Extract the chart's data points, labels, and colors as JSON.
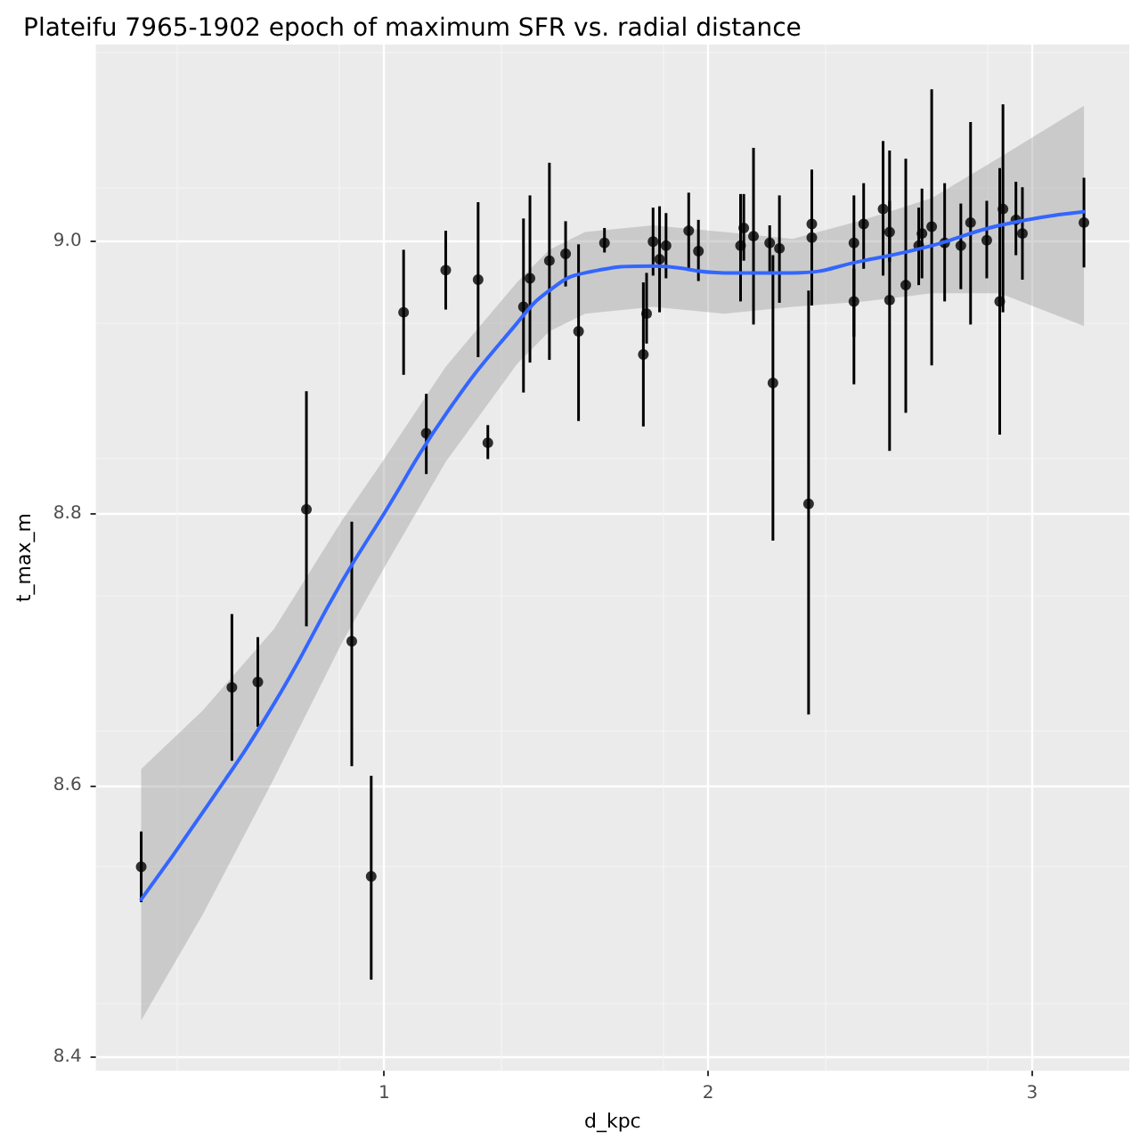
{
  "chart_data": {
    "type": "scatter",
    "title": "Plateifu 7965-1902 epoch of maximum SFR vs. radial distance",
    "xlabel": "d_kpc",
    "ylabel": "t_max_m",
    "xlim": [
      0.11,
      3.3
    ],
    "xticks": [
      1,
      2,
      3
    ],
    "ylim": [
      8.39,
      9.145
    ],
    "yticks": [
      8.4,
      8.6,
      8.8,
      {
        "value": 9.0,
        "label": "9.0"
      }
    ],
    "grid": true,
    "marker": "circle",
    "series": [
      {
        "type": "scatter",
        "color": "#000000",
        "x": [
          0.25,
          0.53,
          0.61,
          0.76,
          0.9,
          0.96,
          1.06,
          1.13,
          1.19,
          1.29,
          1.32,
          1.43,
          1.45,
          1.51,
          1.56,
          1.6,
          1.68,
          1.8,
          1.81,
          1.83,
          1.85,
          1.87,
          1.94,
          1.97,
          2.1,
          2.11,
          2.14,
          2.19,
          2.2,
          2.22,
          2.31,
          2.32,
          2.32,
          2.45,
          2.45,
          2.48,
          2.54,
          2.56,
          2.56,
          2.61,
          2.65,
          2.66,
          2.69,
          2.73,
          2.78,
          2.81,
          2.86,
          2.9,
          2.91,
          2.95,
          2.97,
          3.16
        ],
        "values": [
          8.54,
          8.672,
          8.676,
          8.803,
          8.706,
          8.533,
          8.948,
          8.859,
          8.979,
          8.972,
          8.852,
          8.952,
          8.973,
          8.986,
          8.991,
          8.934,
          8.999,
          8.917,
          8.947,
          9.0,
          8.987,
          8.997,
          9.008,
          8.993,
          8.997,
          9.01,
          9.004,
          8.999,
          8.896,
          8.995,
          8.807,
          9.013,
          9.003,
          8.999,
          8.956,
          9.013,
          9.024,
          9.007,
          8.957,
          8.968,
          8.997,
          9.006,
          9.011,
          8.999,
          8.997,
          9.014,
          9.001,
          8.956,
          9.024,
          9.016,
          9.006,
          9.014
        ],
        "errors": [
          [
            8.514,
            8.566
          ],
          [
            8.618,
            8.726
          ],
          [
            8.643,
            8.709
          ],
          [
            8.717,
            8.89
          ],
          [
            8.614,
            8.794
          ],
          [
            8.457,
            8.607
          ],
          [
            8.902,
            8.994
          ],
          [
            8.829,
            8.888
          ],
          [
            8.95,
            9.008
          ],
          [
            8.915,
            9.029
          ],
          [
            8.84,
            8.865
          ],
          [
            8.889,
            9.017
          ],
          [
            8.911,
            9.034
          ],
          [
            8.913,
            9.058
          ],
          [
            8.967,
            9.015
          ],
          [
            8.868,
            8.998
          ],
          [
            8.992,
            9.01
          ],
          [
            8.864,
            8.97
          ],
          [
            8.925,
            8.977
          ],
          [
            8.975,
            9.025
          ],
          [
            8.948,
            9.026
          ],
          [
            8.973,
            9.021
          ],
          [
            8.98,
            9.036
          ],
          [
            8.971,
            9.016
          ],
          [
            8.956,
            9.035
          ],
          [
            8.986,
            9.035
          ],
          [
            8.939,
            9.069
          ],
          [
            8.976,
            9.012
          ],
          [
            8.78,
            8.99
          ],
          [
            8.955,
            9.034
          ],
          [
            8.652,
            8.964
          ],
          [
            8.985,
            9.053
          ],
          [
            8.953,
            9.04
          ],
          [
            8.895,
            9.034
          ],
          [
            8.93,
            8.98
          ],
          [
            8.98,
            9.043
          ],
          [
            8.975,
            9.074
          ],
          [
            8.985,
            9.03
          ],
          [
            8.846,
            9.067
          ],
          [
            8.874,
            9.061
          ],
          [
            8.968,
            9.025
          ],
          [
            8.973,
            9.039
          ],
          [
            8.909,
            9.112
          ],
          [
            8.956,
            9.043
          ],
          [
            8.965,
            9.028
          ],
          [
            8.939,
            9.088
          ],
          [
            8.973,
            9.03
          ],
          [
            8.858,
            9.054
          ],
          [
            8.948,
            9.101
          ],
          [
            8.99,
            9.044
          ],
          [
            8.972,
            9.04
          ],
          [
            8.981,
            9.047
          ]
        ]
      },
      {
        "type": "line",
        "color": "#3366ff",
        "marker": "none",
        "x": [
          0.25,
          0.44,
          0.66,
          0.87,
          1.0,
          1.19,
          1.41,
          1.51,
          1.62,
          1.83,
          2.05,
          2.26,
          2.48,
          2.69,
          2.9,
          3.16
        ],
        "values": [
          8.516,
          8.58,
          8.66,
          8.75,
          8.8,
          8.873,
          8.94,
          8.964,
          8.977,
          8.982,
          8.977,
          8.977,
          8.986,
          8.997,
          9.012,
          9.022
        ],
        "lower": [
          8.427,
          8.505,
          8.605,
          8.705,
          8.76,
          8.838,
          8.91,
          8.934,
          8.947,
          8.952,
          8.947,
          8.952,
          8.956,
          8.962,
          8.962,
          8.938
        ],
        "upper": [
          8.612,
          8.655,
          8.715,
          8.795,
          8.84,
          8.908,
          8.97,
          8.994,
          9.007,
          9.012,
          9.007,
          9.002,
          9.016,
          9.032,
          9.062,
          9.1
        ]
      }
    ]
  }
}
